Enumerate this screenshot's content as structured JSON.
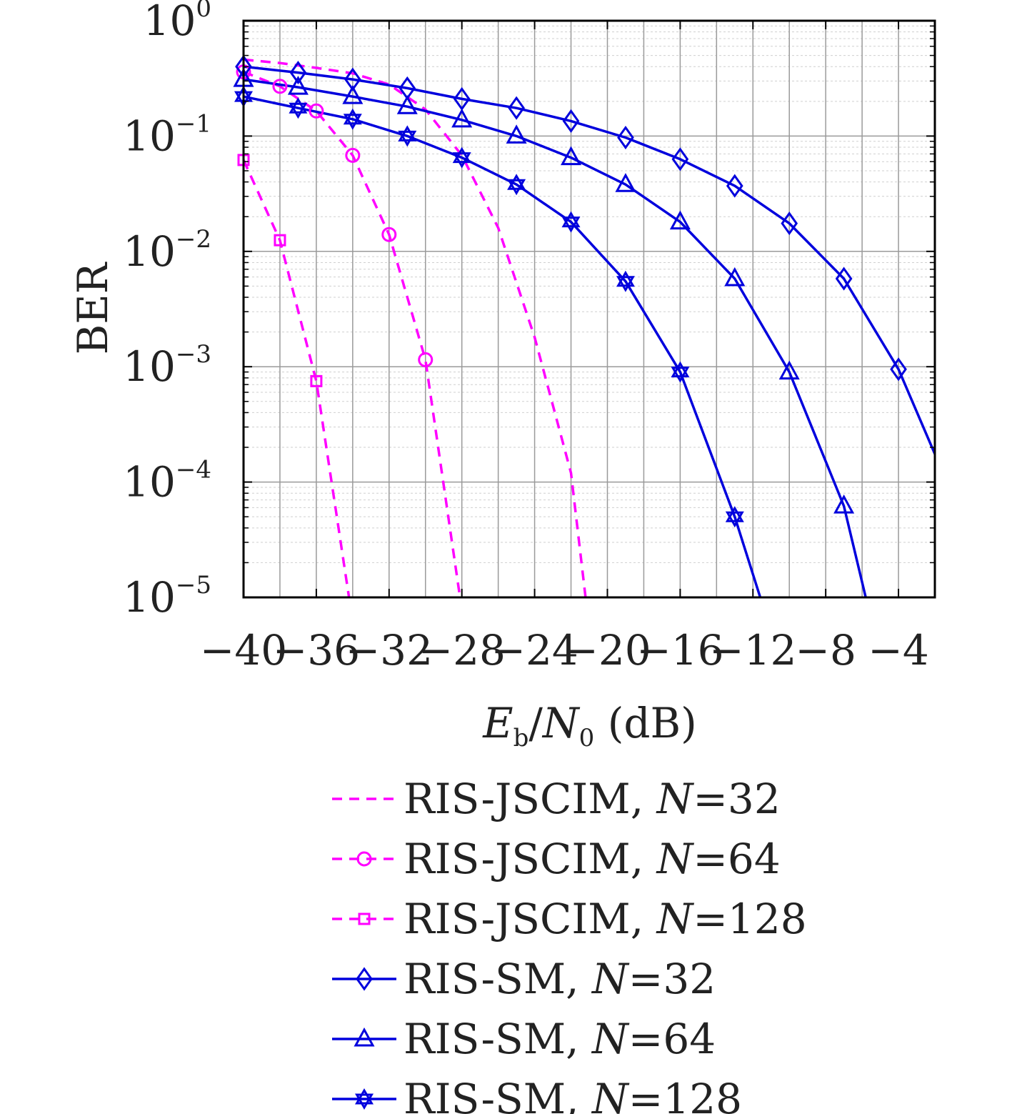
{
  "chart_data": {
    "type": "line",
    "yscale": "log",
    "title": "",
    "xlabel": "E_b/N_0 (dB)",
    "xlabel_parts": {
      "E": "E",
      "b": "b",
      "slash": "/",
      "N": "N",
      "zero": "0",
      "unit": " (dB)"
    },
    "ylabel": "BER",
    "xlim": [
      -40,
      -2
    ],
    "ylim": [
      1e-05,
      1
    ],
    "grid": true,
    "legend_position": "below",
    "xticks": [
      -40,
      -36,
      -32,
      -28,
      -24,
      -20,
      -16,
      -12,
      -8,
      -4
    ],
    "xtick_labels": [
      "−40",
      "−36",
      "−32",
      "−28",
      "−24",
      "−20",
      "−16",
      "−12",
      "−8",
      "−4"
    ],
    "yticks": [
      {
        "value": 1,
        "base": "10",
        "exp": "0"
      },
      {
        "value": 0.1,
        "base": "10",
        "exp": "−1"
      },
      {
        "value": 0.01,
        "base": "10",
        "exp": "−2"
      },
      {
        "value": 0.001,
        "base": "10",
        "exp": "−3"
      },
      {
        "value": 0.0001,
        "base": "10",
        "exp": "−4"
      },
      {
        "value": 1e-05,
        "base": "10",
        "exp": "−5"
      }
    ],
    "series": [
      {
        "name": "RIS-JSCIM, N=32",
        "label_prefix": "RIS-JSCIM, ",
        "label_var": "N",
        "label_suffix": "=32",
        "color": "#ff00ff",
        "dash": true,
        "marker": "none",
        "points": [
          [
            -40,
            0.46
          ],
          [
            -38,
            0.43
          ],
          [
            -36,
            0.39
          ],
          [
            -34,
            0.35
          ],
          [
            -32,
            0.28
          ],
          [
            -30,
            0.17
          ],
          [
            -28,
            0.068
          ],
          [
            -26,
            0.016
          ],
          [
            -24,
            0.0018
          ],
          [
            -22,
            0.00012
          ],
          [
            -21.2,
            1e-05
          ]
        ],
        "marker_points": []
      },
      {
        "name": "RIS-JSCIM, N=64",
        "label_prefix": "RIS-JSCIM, ",
        "label_var": "N",
        "label_suffix": "=64",
        "color": "#ff00ff",
        "dash": true,
        "marker": "circle",
        "points": [
          [
            -40,
            0.36
          ],
          [
            -38,
            0.27
          ],
          [
            -36,
            0.165
          ],
          [
            -34,
            0.068
          ],
          [
            -32,
            0.014
          ],
          [
            -30,
            0.00115
          ],
          [
            -28.1,
            1e-05
          ]
        ],
        "marker_points": [
          [
            -40,
            0.36
          ],
          [
            -38,
            0.27
          ],
          [
            -36,
            0.165
          ],
          [
            -34,
            0.068
          ],
          [
            -32,
            0.014
          ],
          [
            -30,
            0.00115
          ]
        ]
      },
      {
        "name": "RIS-JSCIM, N=128",
        "label_prefix": "RIS-JSCIM, ",
        "label_var": "N",
        "label_suffix": "=128",
        "color": "#ff00ff",
        "dash": true,
        "marker": "square",
        "points": [
          [
            -40,
            0.062
          ],
          [
            -38,
            0.0125
          ],
          [
            -36,
            0.00075
          ],
          [
            -34.2,
            1e-05
          ]
        ],
        "marker_points": [
          [
            -40,
            0.062
          ],
          [
            -38,
            0.0125
          ],
          [
            -36,
            0.00075
          ]
        ]
      },
      {
        "name": "RIS-SM, N=32",
        "label_prefix": "RIS-SM, ",
        "label_var": "N",
        "label_suffix": "=32",
        "color": "#0000dd",
        "dash": false,
        "marker": "diamond",
        "points": [
          [
            -40,
            0.4
          ],
          [
            -37,
            0.355
          ],
          [
            -34,
            0.31
          ],
          [
            -31,
            0.26
          ],
          [
            -28,
            0.21
          ],
          [
            -25,
            0.175
          ],
          [
            -22,
            0.135
          ],
          [
            -19,
            0.097
          ],
          [
            -16,
            0.063
          ],
          [
            -13,
            0.037
          ],
          [
            -10,
            0.0175
          ],
          [
            -7,
            0.0058
          ],
          [
            -4,
            0.00095
          ],
          [
            -2,
            0.000175
          ]
        ],
        "marker_points": [
          [
            -40,
            0.4
          ],
          [
            -37,
            0.355
          ],
          [
            -34,
            0.31
          ],
          [
            -31,
            0.26
          ],
          [
            -28,
            0.21
          ],
          [
            -25,
            0.175
          ],
          [
            -22,
            0.135
          ],
          [
            -19,
            0.097
          ],
          [
            -16,
            0.063
          ],
          [
            -13,
            0.037
          ],
          [
            -10,
            0.0175
          ],
          [
            -7,
            0.0058
          ],
          [
            -4,
            0.00095
          ]
        ]
      },
      {
        "name": "RIS-SM, N=64",
        "label_prefix": "RIS-SM, ",
        "label_var": "N",
        "label_suffix": "=64",
        "color": "#0000dd",
        "dash": false,
        "marker": "triangle",
        "points": [
          [
            -40,
            0.31
          ],
          [
            -37,
            0.265
          ],
          [
            -34,
            0.22
          ],
          [
            -31,
            0.18
          ],
          [
            -28,
            0.138
          ],
          [
            -25,
            0.1
          ],
          [
            -22,
            0.065
          ],
          [
            -19,
            0.038
          ],
          [
            -16,
            0.018
          ],
          [
            -13,
            0.0058
          ],
          [
            -10,
            0.0009
          ],
          [
            -7,
            6.2e-05
          ],
          [
            -5.8,
            1e-05
          ]
        ],
        "marker_points": [
          [
            -40,
            0.31
          ],
          [
            -37,
            0.265
          ],
          [
            -34,
            0.22
          ],
          [
            -31,
            0.18
          ],
          [
            -28,
            0.138
          ],
          [
            -25,
            0.1
          ],
          [
            -22,
            0.065
          ],
          [
            -19,
            0.038
          ],
          [
            -16,
            0.018
          ],
          [
            -13,
            0.0058
          ],
          [
            -10,
            0.0009
          ],
          [
            -7,
            6.2e-05
          ]
        ]
      },
      {
        "name": "RIS-SM, N=128",
        "label_prefix": "RIS-SM, ",
        "label_var": "N",
        "label_suffix": "=128",
        "color": "#0000dd",
        "dash": false,
        "marker": "hexagram",
        "points": [
          [
            -40,
            0.22
          ],
          [
            -37,
            0.175
          ],
          [
            -34,
            0.14
          ],
          [
            -31,
            0.1
          ],
          [
            -28,
            0.065
          ],
          [
            -25,
            0.038
          ],
          [
            -22,
            0.018
          ],
          [
            -19,
            0.0055
          ],
          [
            -16,
            0.0009
          ],
          [
            -13,
            5e-05
          ],
          [
            -11.6,
            1e-05
          ]
        ],
        "marker_points": [
          [
            -40,
            0.22
          ],
          [
            -37,
            0.175
          ],
          [
            -34,
            0.14
          ],
          [
            -31,
            0.1
          ],
          [
            -28,
            0.065
          ],
          [
            -25,
            0.038
          ],
          [
            -22,
            0.018
          ],
          [
            -19,
            0.0055
          ],
          [
            -16,
            0.0009
          ],
          [
            -13,
            5e-05
          ]
        ]
      }
    ]
  }
}
